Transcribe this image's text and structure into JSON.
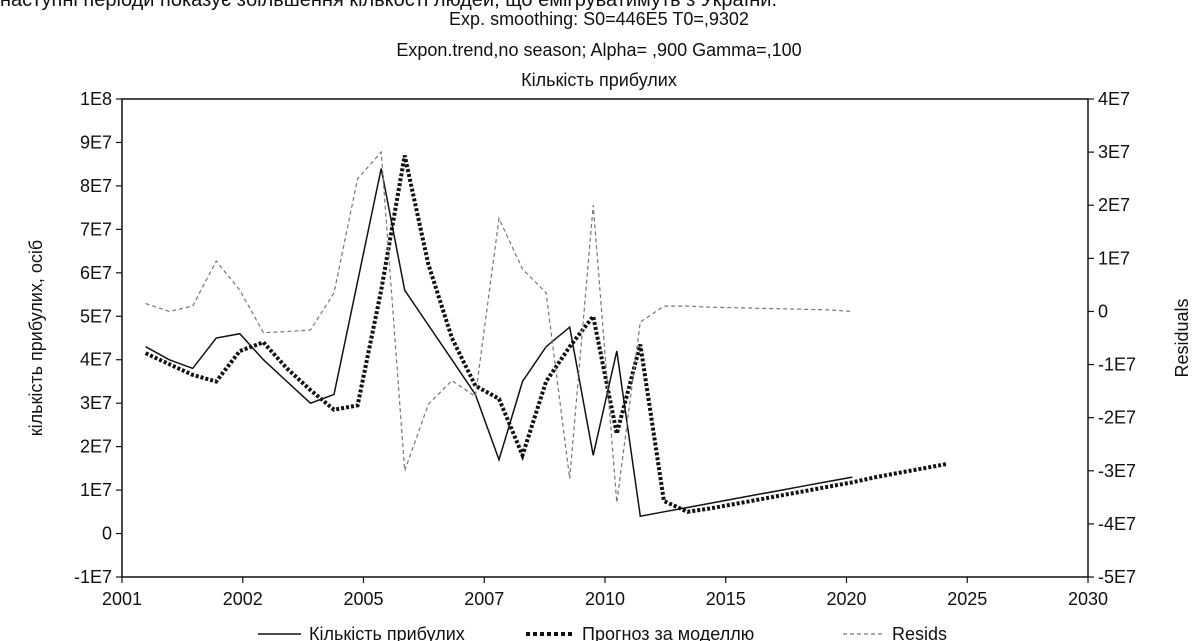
{
  "caption": "наступні періоди показує збільшення кількості людей, що емігруватимуть з України.",
  "chart_data": {
    "type": "line",
    "title_lines": [
      "Exp. smoothing: S0=446E5 T0=,9302",
      "Expon.trend,no season; Alpha= ,900 Gamma=,100",
      "Кількість прибулих"
    ],
    "ylabel_left": "кількість прибулих, осіб",
    "ylabel_right": "Residuals",
    "x_ticks": [
      "2001",
      "2002",
      "2005",
      "2007",
      "2010",
      "2015",
      "2020",
      "2025",
      "2030"
    ],
    "y_left_ticks": [
      "-1E7",
      "0",
      "1E7",
      "2E7",
      "3E7",
      "4E7",
      "5E7",
      "6E7",
      "7E7",
      "8E7",
      "9E7",
      "1E8"
    ],
    "y_right_ticks": [
      "-5E7",
      "-4E7",
      "-3E7",
      "-2E7",
      "-1E7",
      "0",
      "1E7",
      "2E7",
      "3E7",
      "4E7"
    ],
    "ylim_left": [
      -10000000,
      100000000
    ],
    "ylim_right": [
      -50000000,
      40000000
    ],
    "x_period_range": [
      0,
      41
    ],
    "grid": false,
    "legend_position": "bottom",
    "series": [
      {
        "name": "Кількість прибулих",
        "axis": "left",
        "style": "solid",
        "x": [
          1,
          2,
          3,
          4,
          5,
          6,
          7,
          8,
          9,
          10,
          11,
          12,
          13,
          14,
          15,
          16,
          17,
          18,
          19,
          20,
          21,
          22,
          23,
          24,
          25,
          26,
          27,
          28,
          29,
          30,
          31
        ],
        "values": [
          43000000,
          40000000,
          38000000,
          45000000,
          46000000,
          40000000,
          35000000,
          30000000,
          32000000,
          58000000,
          84000000,
          56000000,
          48000000,
          40000000,
          32000000,
          17000000,
          35000000,
          43000000,
          47500000,
          18000000,
          42000000,
          4000000,
          5000000,
          6000000,
          7000000,
          8000000,
          9000000,
          10000000,
          11000000,
          12000000,
          13000000
        ]
      },
      {
        "name": "Прогноз за моделлю",
        "axis": "left",
        "style": "dotted",
        "x": [
          1,
          2,
          3,
          4,
          5,
          6,
          7,
          8,
          9,
          10,
          11,
          12,
          13,
          14,
          15,
          16,
          17,
          18,
          19,
          20,
          21,
          22,
          23,
          24,
          25,
          26,
          27,
          28,
          29,
          30,
          31,
          32,
          33,
          34,
          35
        ],
        "values": [
          41500000,
          39000000,
          36500000,
          35000000,
          42000000,
          44000000,
          38000000,
          33000000,
          28500000,
          29500000,
          56000000,
          87000000,
          62000000,
          45000000,
          34000000,
          31000000,
          18000000,
          35000000,
          43000000,
          50000000,
          23000000,
          43500000,
          7500000,
          5000000,
          5800000,
          6800000,
          7800000,
          8800000,
          9800000,
          10800000,
          11800000,
          13000000,
          14000000,
          15000000,
          16000000
        ]
      },
      {
        "name": "Resids",
        "axis": "right",
        "style": "dashed",
        "x": [
          1,
          2,
          3,
          4,
          5,
          6,
          7,
          8,
          9,
          10,
          11,
          12,
          13,
          14,
          15,
          16,
          17,
          18,
          19,
          20,
          21,
          22,
          23,
          24,
          25,
          26,
          27,
          28,
          29,
          30,
          31
        ],
        "values": [
          1500000,
          0,
          1000000,
          9500000,
          4000000,
          -4000000,
          -3800000,
          -3500000,
          3500000,
          25000000,
          30000000,
          -30000000,
          -17500000,
          -13000000,
          -16000000,
          17500000,
          8000000,
          3500000,
          -31500000,
          20000000,
          -36000000,
          -2000000,
          1000000,
          1000000,
          800000,
          700000,
          600000,
          500000,
          400000,
          300000,
          0
        ]
      }
    ]
  }
}
